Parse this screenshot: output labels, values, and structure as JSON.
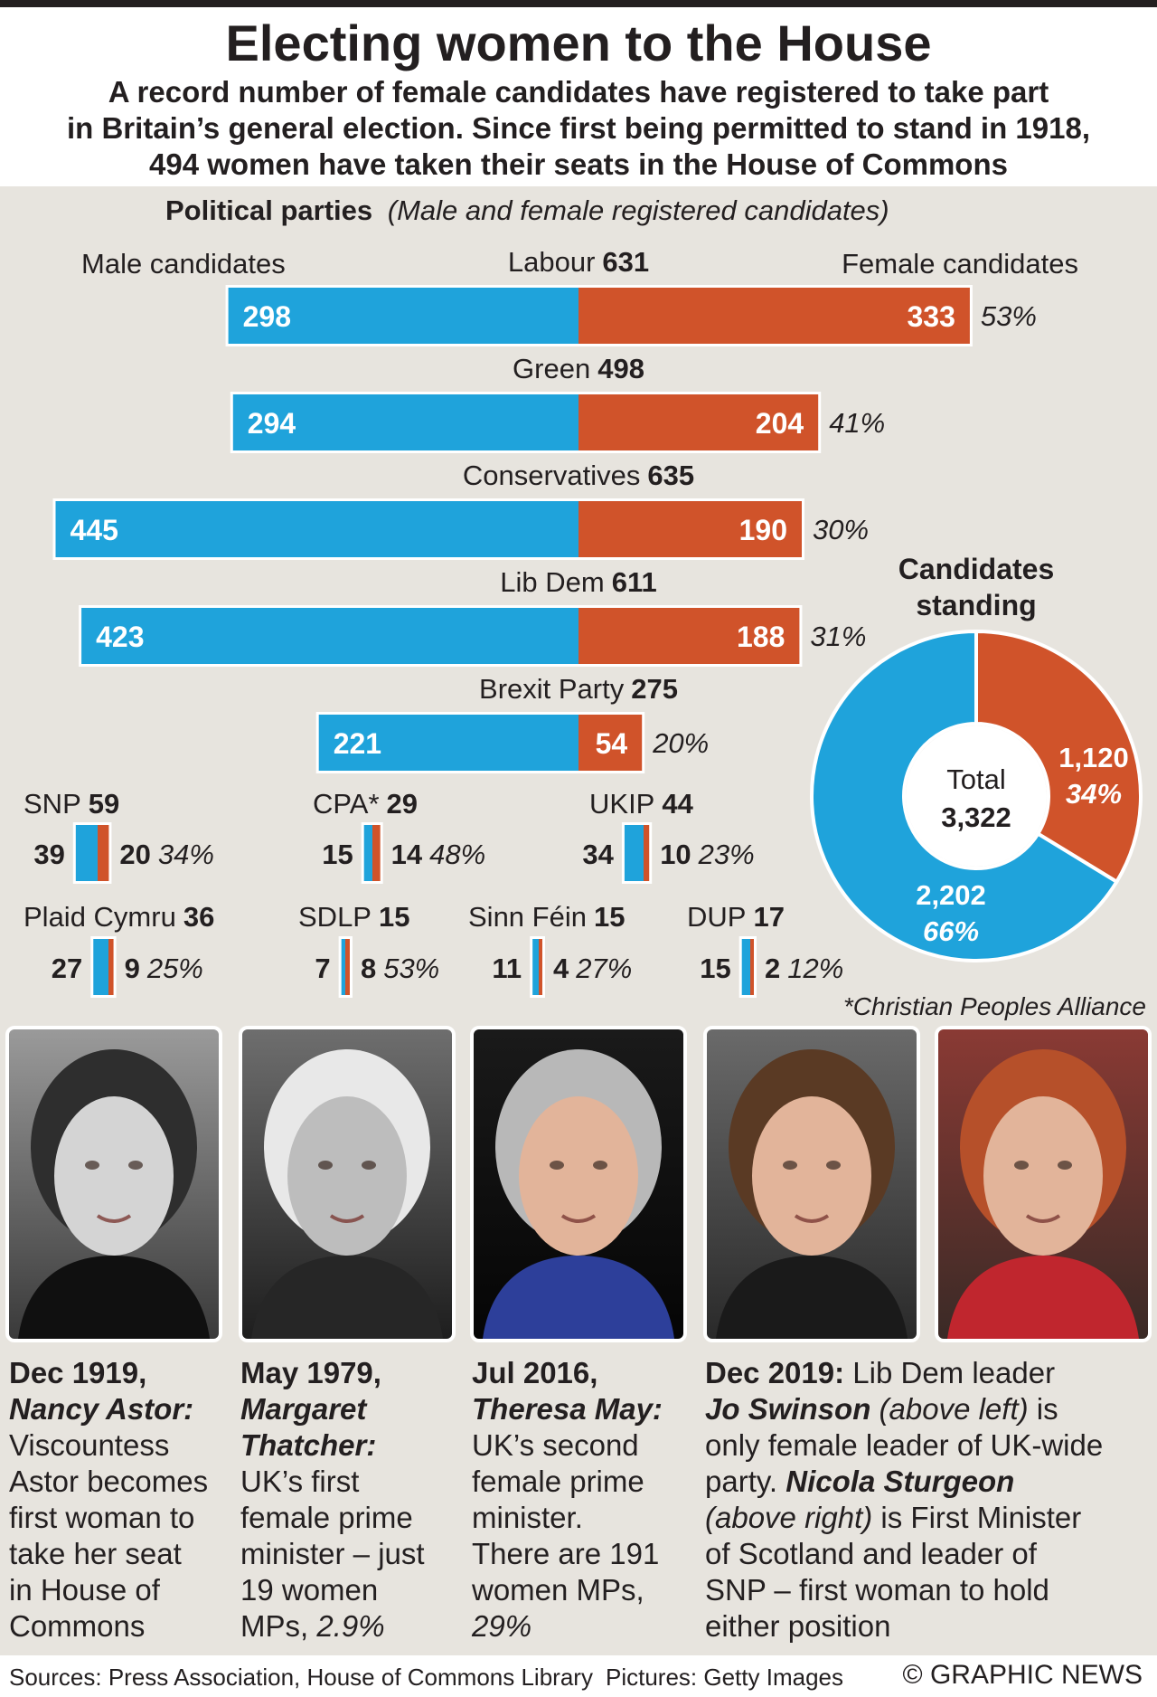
{
  "title": "Electing women to the House",
  "subtitle": [
    "A record number of female candidates have registered to take part",
    "in Britain’s general election. Since first being permitted to stand in 1918,",
    "494 women have taken their seats in the House of Commons"
  ],
  "colors": {
    "male": "#1fa3db",
    "female": "#d0532a",
    "panel": "#e7e4de"
  },
  "chart_data": [
    {
      "type": "bar",
      "title": "Political parties",
      "subtitle": "(Male and female registered candidates)",
      "legend": [
        "Male candidates",
        "Female candidates"
      ],
      "parties": [
        {
          "name": "Labour",
          "total": 631,
          "male": 298,
          "female": 333,
          "pct": "53%"
        },
        {
          "name": "Green",
          "total": 498,
          "male": 294,
          "female": 204,
          "pct": "41%"
        },
        {
          "name": "Conservatives",
          "total": 635,
          "male": 445,
          "female": 190,
          "pct": "30%"
        },
        {
          "name": "Lib Dem",
          "total": 611,
          "male": 423,
          "female": 188,
          "pct": "31%"
        },
        {
          "name": "Brexit Party",
          "total": 275,
          "male": 221,
          "female": 54,
          "pct": "20%"
        }
      ],
      "small_parties": [
        {
          "name": "SNP",
          "total": 59,
          "male": 39,
          "female": 20,
          "pct": "34%"
        },
        {
          "name": "CPA*",
          "total": 29,
          "male": 15,
          "female": 14,
          "pct": "48%"
        },
        {
          "name": "UKIP",
          "total": 44,
          "male": 34,
          "female": 10,
          "pct": "23%"
        },
        {
          "name": "Plaid Cymru",
          "total": 36,
          "male": 27,
          "female": 9,
          "pct": "25%"
        },
        {
          "name": "SDLP",
          "total": 15,
          "male": 7,
          "female": 8,
          "pct": "53%"
        },
        {
          "name": "Sinn Féin",
          "total": 15,
          "male": 11,
          "female": 4,
          "pct": "27%"
        },
        {
          "name": "DUP",
          "total": 17,
          "male": 15,
          "female": 2,
          "pct": "12%"
        }
      ],
      "footnote": "*Christian Peoples Alliance"
    },
    {
      "type": "pie",
      "title": [
        "Candidates",
        "standing"
      ],
      "center_label": "Total",
      "center_value": "3,322",
      "slices": [
        {
          "name": "Female",
          "value": 1120,
          "label": "1,120",
          "pct": "34%"
        },
        {
          "name": "Male",
          "value": 2202,
          "label": "2,202",
          "pct": "66%"
        }
      ]
    }
  ],
  "photos": [
    {
      "icon": "portrait-nancy-astor",
      "tone": "bw"
    },
    {
      "icon": "portrait-margaret-thatcher",
      "tone": "bw"
    },
    {
      "icon": "portrait-theresa-may",
      "tone": "color"
    },
    {
      "icon": "portrait-jo-swinson",
      "tone": "color"
    },
    {
      "icon": "portrait-nicola-sturgeon",
      "tone": "color"
    }
  ],
  "captions": [
    {
      "date": "Dec 1919,",
      "name": "Nancy Astor:",
      "lines": [
        "Viscountess",
        "Astor becomes",
        "first woman to",
        "take her seat",
        "in House of",
        "Commons"
      ]
    },
    {
      "date": "May 1979,",
      "name": [
        "Margaret",
        "Thatcher:"
      ],
      "lines": [
        "UK’s first",
        "female prime",
        "minister – just",
        "19 women"
      ],
      "last": "MPs, ",
      "last_pct": "2.9%"
    },
    {
      "date": "Jul 2016,",
      "name": "Theresa May:",
      "lines": [
        "UK’s second",
        "female prime",
        "minister.",
        "There are 191",
        "women MPs,"
      ],
      "last_pct": "29%"
    },
    {
      "date": "Dec 2019:",
      "date_rest": " Lib Dem leader",
      "name1": "Jo Swinson",
      "aside1": " (above left)",
      "rest1": " is",
      "line3": "only female leader of UK-wide",
      "line4": "party. ",
      "name2": "Nicola Sturgeon",
      "aside2": "(above right)",
      "rest2": " is First Minister",
      "line6": "of Scotland and leader of",
      "line7": "SNP – first woman to hold",
      "line8": "either position"
    }
  ],
  "footer": {
    "sources": "Sources: Press Association, House of Commons Library",
    "pictures": "Pictures: Getty Images",
    "credit": "© GRAPHIC NEWS"
  }
}
